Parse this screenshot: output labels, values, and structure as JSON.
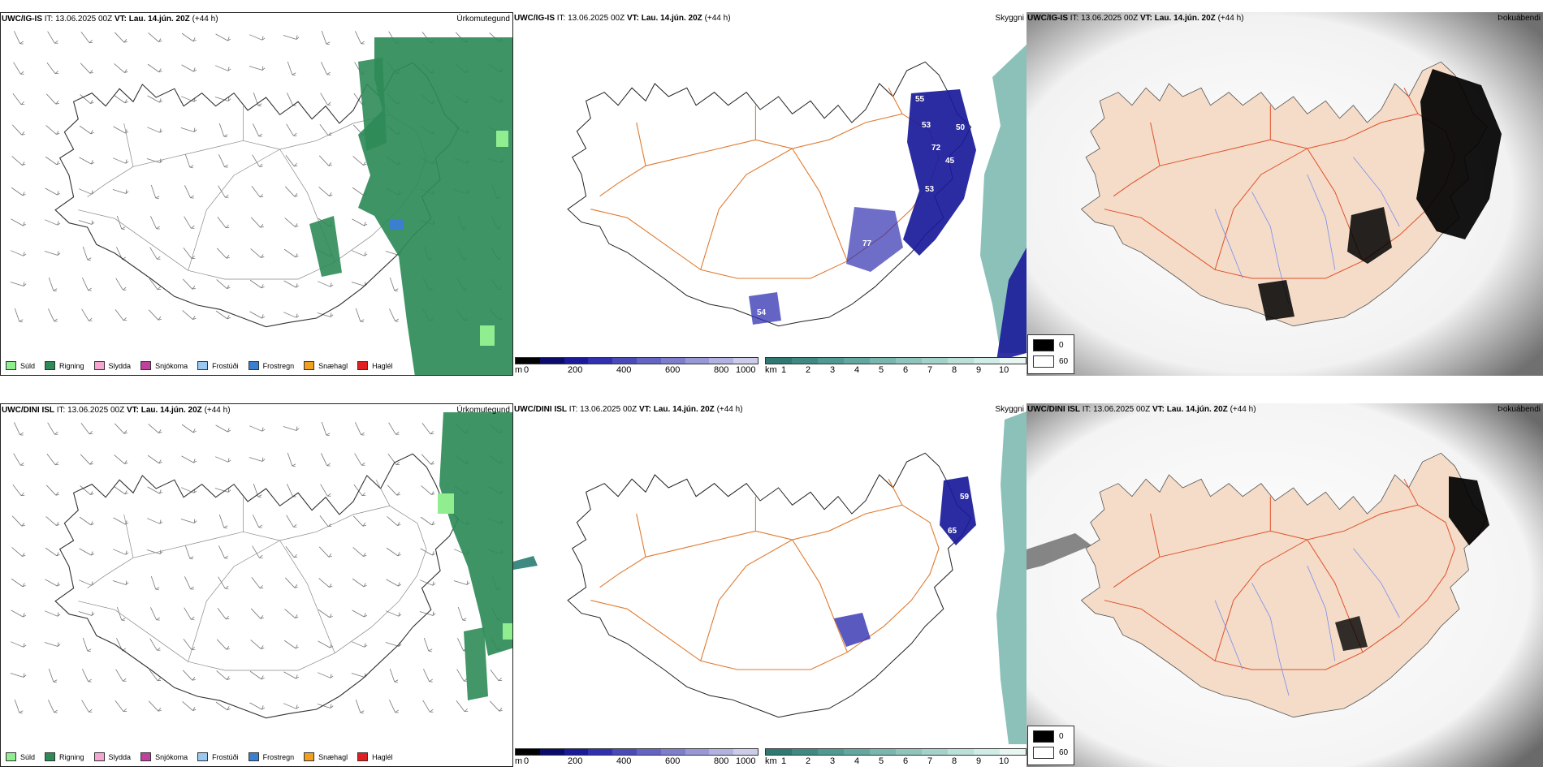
{
  "rows": [
    {
      "model": "UWC/IG-IS",
      "it_label": "IT:",
      "it_value": "13.06.2025 00Z",
      "vt_label": "VT:",
      "vt_value": "Lau. 14.jún. 20Z",
      "lead": "(+44 h)",
      "precip_title": "Úrkomutegund",
      "cloud_title": "Skyggni",
      "fog_title": "Þokuábendi"
    },
    {
      "model": "UWC/DINI ISL",
      "it_label": "IT:",
      "it_value": "13.06.2025 00Z",
      "vt_label": "VT:",
      "vt_value": "Lau. 14.jún. 20Z",
      "lead": "(+44 h)",
      "precip_title": "Úrkomutegund",
      "cloud_title": "Skyggni",
      "fog_title": "Þokuábendi"
    }
  ],
  "precip_legend": [
    {
      "label": "Súld",
      "color": "#90ee90"
    },
    {
      "label": "Rigning",
      "color": "#2e8b57"
    },
    {
      "label": "Slydda",
      "color": "#f4a6d0"
    },
    {
      "label": "Snjókoma",
      "color": "#c040a0"
    },
    {
      "label": "Frostúði",
      "color": "#9ac8f0"
    },
    {
      "label": "Frostregn",
      "color": "#3a7fd0"
    },
    {
      "label": "Snæhagl",
      "color": "#f0a020"
    },
    {
      "label": "Haglél",
      "color": "#e02020"
    }
  ],
  "cloudbase_bar": {
    "unit": "m",
    "ticks": [
      "0",
      "200",
      "400",
      "600",
      "800",
      "1000"
    ],
    "colors": [
      "#000000",
      "#0b0b6b",
      "#1a1a9a",
      "#3030b0",
      "#4a4ab8",
      "#6464c2",
      "#7e7ecc",
      "#9898d6",
      "#b2b2e0",
      "#ccccea"
    ]
  },
  "visibility_bar": {
    "unit": "km",
    "ticks": [
      "1",
      "2",
      "3",
      "4",
      "5",
      "6",
      "7",
      "8",
      "9",
      "10"
    ],
    "colors": [
      "#2e7a72",
      "#3e8a82",
      "#4e9a92",
      "#62a8a0",
      "#78b6ae",
      "#8ec4bc",
      "#a4d2ca",
      "#bae0d8",
      "#d0ece6",
      "#e8f6f2"
    ]
  },
  "fog_key": [
    {
      "value": "0",
      "color": "#000000"
    },
    {
      "value": "60",
      "color": "#ffffff"
    }
  ],
  "cloudbase_labels_top": [
    "55",
    "53",
    "50",
    "72",
    "45",
    "53",
    "77",
    "54"
  ],
  "cloudbase_labels_bottom": [
    "59",
    "65"
  ]
}
